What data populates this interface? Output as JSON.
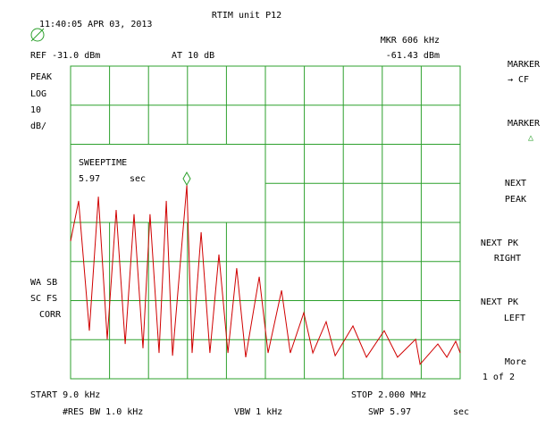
{
  "header": {
    "datetime": "11:40:05 APR 03, 2013",
    "title": "RTIM unit P12",
    "marker_freq": "MKR 606 kHz",
    "ref_level": "REF -31.0  dBm",
    "attenuation": "AT 10  dB",
    "marker_level": "-61.43 dBm"
  },
  "left_labels": [
    "PEAK",
    "LOG",
    "10",
    "dB/",
    "WA SB",
    "SC FS",
    "CORR"
  ],
  "sweeptime": {
    "label": "SWEEPTIME",
    "value": "5.97",
    "unit": "sec"
  },
  "softkeys": [
    {
      "line1": "MARKER",
      "line2": "→ CF"
    },
    {
      "line1": "MARKER",
      "line2": "△"
    },
    {
      "line1": "NEXT",
      "line2": "PEAK"
    },
    {
      "line1": "NEXT PK",
      "line2": "RIGHT"
    },
    {
      "line1": "NEXT PK",
      "line2": "LEFT"
    },
    {
      "line1": "More",
      "line2": "1 of 2"
    }
  ],
  "footer": {
    "start": "START 9.0  kHz",
    "stop": "STOP 2.000  MHz",
    "res_bw": "#RES BW 1.0  kHz",
    "vbw": "VBW 1 kHz",
    "swp": "SWP 5.97",
    "swp_unit": "sec"
  },
  "chart_data": {
    "type": "line",
    "xlim": [
      0.009,
      2.0
    ],
    "ylim": [
      -111,
      -31
    ],
    "x": [
      0.009,
      0.05,
      0.105,
      0.151,
      0.196,
      0.242,
      0.288,
      0.333,
      0.379,
      0.415,
      0.461,
      0.498,
      0.53,
      0.603,
      0.63,
      0.676,
      0.721,
      0.767,
      0.813,
      0.858,
      0.904,
      0.973,
      1.018,
      1.087,
      1.132,
      1.201,
      1.247,
      1.315,
      1.361,
      1.452,
      1.521,
      1.612,
      1.68,
      1.772,
      1.795,
      1.886,
      1.932,
      1.977,
      2.0
    ],
    "series": [
      {
        "color": "#d00000",
        "values": [
          -75.8,
          -65.5,
          -98.7,
          -64.4,
          -100.9,
          -67.8,
          -102.1,
          -68.9,
          -103.2,
          -68.9,
          -104.4,
          -65.5,
          -105.1,
          -61.4,
          -104.4,
          -73.5,
          -104.4,
          -79.2,
          -104.4,
          -82.7,
          -105.5,
          -84.9,
          -104.4,
          -88.4,
          -104.4,
          -94.1,
          -104.4,
          -96.4,
          -105.1,
          -97.5,
          -105.5,
          -98.7,
          -105.5,
          -100.9,
          -107.3,
          -102.1,
          -105.5,
          -101.4,
          -104.4
        ]
      }
    ]
  }
}
